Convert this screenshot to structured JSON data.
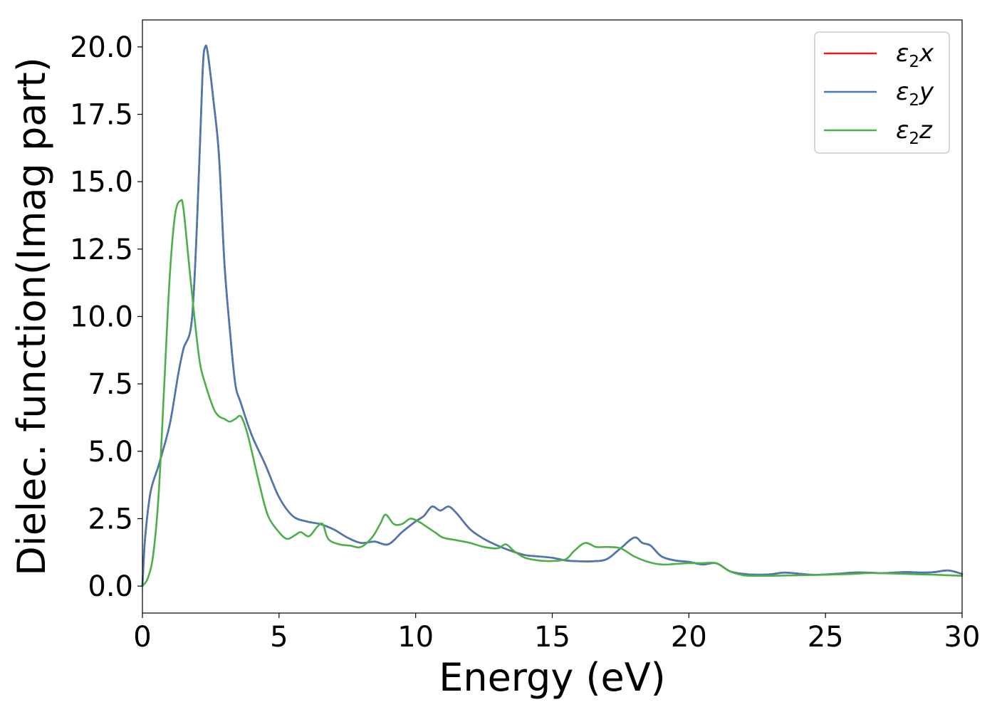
{
  "chart_data": {
    "type": "line",
    "title": "",
    "xlabel": "Energy (eV)",
    "ylabel": "Dielec. function(Imag part)",
    "xlim": [
      0,
      30
    ],
    "ylim": [
      -1.0,
      21.0
    ],
    "xticks": [
      0,
      5,
      10,
      15,
      20,
      25,
      30
    ],
    "xtick_labels": [
      "0",
      "5",
      "10",
      "15",
      "20",
      "25",
      "30"
    ],
    "yticks": [
      0,
      2.5,
      5,
      7.5,
      10,
      12.5,
      15,
      17.5,
      20
    ],
    "ytick_labels": [
      "0.0",
      "2.5",
      "5.0",
      "7.5",
      "10.0",
      "12.5",
      "15.0",
      "17.5",
      "20.0"
    ],
    "grid": false,
    "legend_position": "top-right",
    "series": [
      {
        "name": "ε₂x",
        "legend_base": "ε",
        "legend_sub": "2",
        "legend_axis": "x",
        "color": "#e41a1c",
        "x": [
          0,
          0.1,
          0.3,
          0.6,
          1.0,
          1.3,
          1.5,
          1.8,
          2.0,
          2.2,
          2.3,
          2.4,
          2.6,
          2.8,
          3.0,
          3.2,
          3.4,
          3.6,
          4.0,
          4.5,
          5.0,
          5.5,
          6.0,
          6.5,
          7.0,
          7.5,
          8.0,
          8.5,
          9.0,
          9.5,
          10.0,
          10.3,
          10.6,
          10.9,
          11.2,
          11.5,
          12.0,
          12.5,
          13.0,
          13.5,
          14.0,
          14.5,
          15.0,
          15.5,
          16.0,
          16.5,
          17.0,
          17.5,
          18.0,
          18.3,
          18.6,
          19.0,
          19.5,
          20.0,
          20.5,
          21.0,
          21.5,
          22.0,
          22.5,
          23.0,
          23.5,
          24.0,
          24.5,
          25.0,
          25.5,
          26.0,
          26.5,
          27.0,
          27.5,
          28.0,
          28.5,
          29.0,
          29.5,
          30.0
        ],
        "y": [
          0.0,
          1.8,
          3.5,
          4.5,
          6.0,
          7.8,
          8.8,
          9.8,
          13.5,
          19.0,
          20.0,
          19.7,
          18.0,
          16.0,
          12.0,
          9.5,
          7.5,
          6.8,
          5.6,
          4.5,
          3.3,
          2.6,
          2.4,
          2.3,
          2.1,
          1.8,
          1.6,
          1.65,
          1.55,
          2.0,
          2.4,
          2.6,
          2.95,
          2.8,
          2.95,
          2.7,
          2.1,
          1.75,
          1.5,
          1.3,
          1.15,
          1.1,
          1.05,
          0.95,
          0.92,
          0.92,
          1.0,
          1.4,
          1.8,
          1.6,
          1.5,
          1.1,
          0.95,
          0.9,
          0.8,
          0.85,
          0.55,
          0.45,
          0.42,
          0.44,
          0.5,
          0.46,
          0.42,
          0.43,
          0.46,
          0.5,
          0.5,
          0.48,
          0.5,
          0.52,
          0.5,
          0.52,
          0.58,
          0.45
        ]
      },
      {
        "name": "ε₂y",
        "legend_base": "ε",
        "legend_sub": "2",
        "legend_axis": "y",
        "color": "#4a78b3",
        "x": [
          0,
          0.1,
          0.3,
          0.6,
          1.0,
          1.3,
          1.5,
          1.8,
          2.0,
          2.2,
          2.3,
          2.4,
          2.6,
          2.8,
          3.0,
          3.2,
          3.4,
          3.6,
          4.0,
          4.5,
          5.0,
          5.5,
          6.0,
          6.5,
          7.0,
          7.5,
          8.0,
          8.5,
          9.0,
          9.5,
          10.0,
          10.3,
          10.6,
          10.9,
          11.2,
          11.5,
          12.0,
          12.5,
          13.0,
          13.5,
          14.0,
          14.5,
          15.0,
          15.5,
          16.0,
          16.5,
          17.0,
          17.5,
          18.0,
          18.3,
          18.6,
          19.0,
          19.5,
          20.0,
          20.5,
          21.0,
          21.5,
          22.0,
          22.5,
          23.0,
          23.5,
          24.0,
          24.5,
          25.0,
          25.5,
          26.0,
          26.5,
          27.0,
          27.5,
          28.0,
          28.5,
          29.0,
          29.5,
          30.0
        ],
        "y": [
          0.0,
          1.8,
          3.5,
          4.5,
          6.0,
          7.8,
          8.8,
          9.8,
          13.5,
          19.0,
          20.0,
          19.7,
          18.0,
          16.0,
          12.0,
          9.5,
          7.5,
          6.8,
          5.6,
          4.5,
          3.3,
          2.6,
          2.4,
          2.3,
          2.1,
          1.8,
          1.6,
          1.65,
          1.55,
          2.0,
          2.4,
          2.6,
          2.95,
          2.8,
          2.95,
          2.7,
          2.1,
          1.75,
          1.5,
          1.3,
          1.15,
          1.1,
          1.05,
          0.95,
          0.92,
          0.92,
          1.0,
          1.4,
          1.8,
          1.6,
          1.5,
          1.1,
          0.95,
          0.9,
          0.8,
          0.85,
          0.55,
          0.45,
          0.42,
          0.44,
          0.5,
          0.46,
          0.42,
          0.43,
          0.46,
          0.5,
          0.5,
          0.48,
          0.5,
          0.52,
          0.5,
          0.52,
          0.58,
          0.45
        ]
      },
      {
        "name": "ε₂z",
        "legend_base": "ε",
        "legend_sub": "2",
        "legend_axis": "z",
        "color": "#4daf4a",
        "x": [
          0,
          0.2,
          0.4,
          0.6,
          0.8,
          1.0,
          1.2,
          1.4,
          1.5,
          1.7,
          1.9,
          2.1,
          2.3,
          2.6,
          2.8,
          3.0,
          3.2,
          3.4,
          3.6,
          3.8,
          4.0,
          4.3,
          4.6,
          5.0,
          5.3,
          5.6,
          5.8,
          6.1,
          6.4,
          6.6,
          6.8,
          7.2,
          7.6,
          8.0,
          8.4,
          8.7,
          8.9,
          9.2,
          9.5,
          9.8,
          10.1,
          10.4,
          10.7,
          11.0,
          11.5,
          12.0,
          12.5,
          13.0,
          13.3,
          13.6,
          14.0,
          14.5,
          15.0,
          15.5,
          15.8,
          16.2,
          16.6,
          17.0,
          17.5,
          18.0,
          18.5,
          19.0,
          19.5,
          20.0,
          20.5,
          21.0,
          21.5,
          22.0,
          22.5,
          23.0,
          24.0,
          25.0,
          26.0,
          26.5,
          27.0,
          28.0,
          29.0,
          30.0
        ],
        "y": [
          0.0,
          0.3,
          1.2,
          3.5,
          7.5,
          11.5,
          13.8,
          14.3,
          14.0,
          12.0,
          10.0,
          8.3,
          7.5,
          6.6,
          6.3,
          6.2,
          6.1,
          6.2,
          6.3,
          5.8,
          5.0,
          3.7,
          2.6,
          2.0,
          1.75,
          1.9,
          2.0,
          1.85,
          2.2,
          2.3,
          1.75,
          1.55,
          1.5,
          1.45,
          1.8,
          2.3,
          2.65,
          2.3,
          2.3,
          2.5,
          2.4,
          2.2,
          2.0,
          1.8,
          1.7,
          1.6,
          1.45,
          1.4,
          1.55,
          1.3,
          1.05,
          0.95,
          0.93,
          1.0,
          1.3,
          1.6,
          1.45,
          1.45,
          1.4,
          1.1,
          0.9,
          0.8,
          0.82,
          0.85,
          0.85,
          0.85,
          0.55,
          0.4,
          0.38,
          0.38,
          0.4,
          0.42,
          0.45,
          0.48,
          0.48,
          0.45,
          0.42,
          0.38
        ]
      }
    ]
  }
}
